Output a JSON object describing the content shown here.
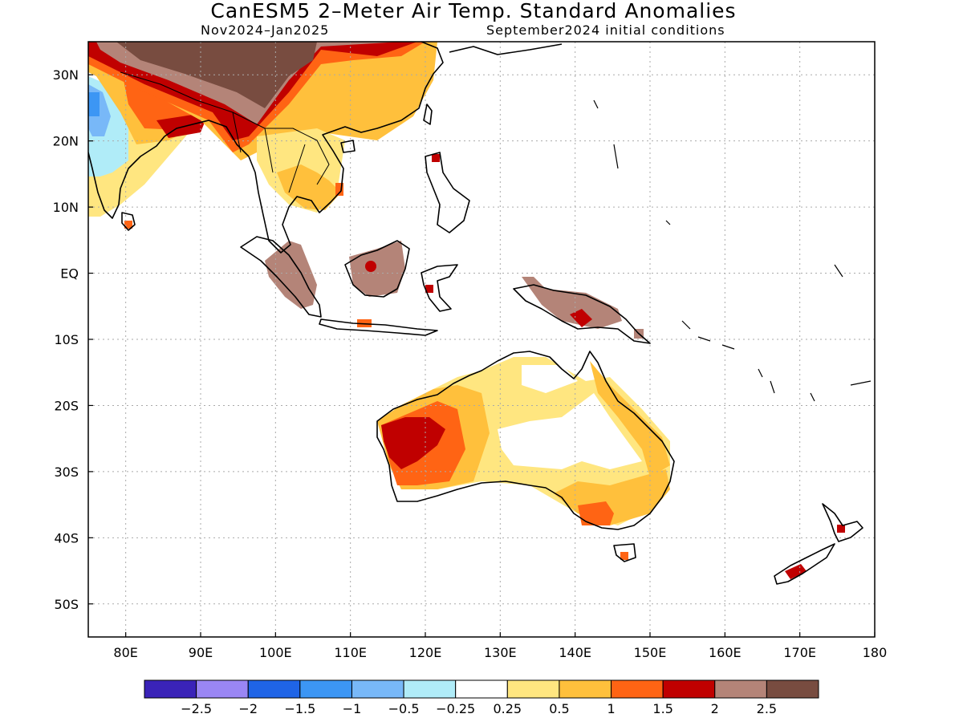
{
  "title": "CanESM5 2–Meter Air Temp. Standard Anomalies",
  "subtitle_left": "Nov2024–Jan2025",
  "subtitle_right": "September2024 initial conditions",
  "lat_labels": [
    {
      "label": "30N",
      "lat": 30
    },
    {
      "label": "20N",
      "lat": 20
    },
    {
      "label": "10N",
      "lat": 10
    },
    {
      "label": "EQ",
      "lat": 0
    },
    {
      "label": "10S",
      "lat": -10
    },
    {
      "label": "20S",
      "lat": -20
    },
    {
      "label": "30S",
      "lat": -30
    },
    {
      "label": "40S",
      "lat": -40
    },
    {
      "label": "50S",
      "lat": -50
    }
  ],
  "lon_labels": [
    {
      "label": "80E",
      "lon": 80
    },
    {
      "label": "90E",
      "lon": 90
    },
    {
      "label": "100E",
      "lon": 100
    },
    {
      "label": "110E",
      "lon": 110
    },
    {
      "label": "120E",
      "lon": 120
    },
    {
      "label": "130E",
      "lon": 130
    },
    {
      "label": "140E",
      "lon": 140
    },
    {
      "label": "150E",
      "lon": 150
    },
    {
      "label": "160E",
      "lon": 160
    },
    {
      "label": "170E",
      "lon": 170
    },
    {
      "label": "180",
      "lon": 180
    }
  ],
  "extent": {
    "lon_min": 75,
    "lon_max": 180,
    "lat_min": -55,
    "lat_max": 35
  },
  "colorbar": {
    "colors": [
      "#3a23b8",
      "#9a86f4",
      "#1f64e6",
      "#3c96f4",
      "#78b8f8",
      "#b0ecf8",
      "#ffffff",
      "#ffe680",
      "#ffc03c",
      "#ff6414",
      "#c00000",
      "#b48478",
      "#784c40"
    ],
    "labels": [
      "−2.5",
      "−2",
      "−1.5",
      "−1",
      "−0.5",
      "−0.25",
      "0.25",
      "0.5",
      "1",
      "1.5",
      "2",
      "2.5"
    ]
  }
}
